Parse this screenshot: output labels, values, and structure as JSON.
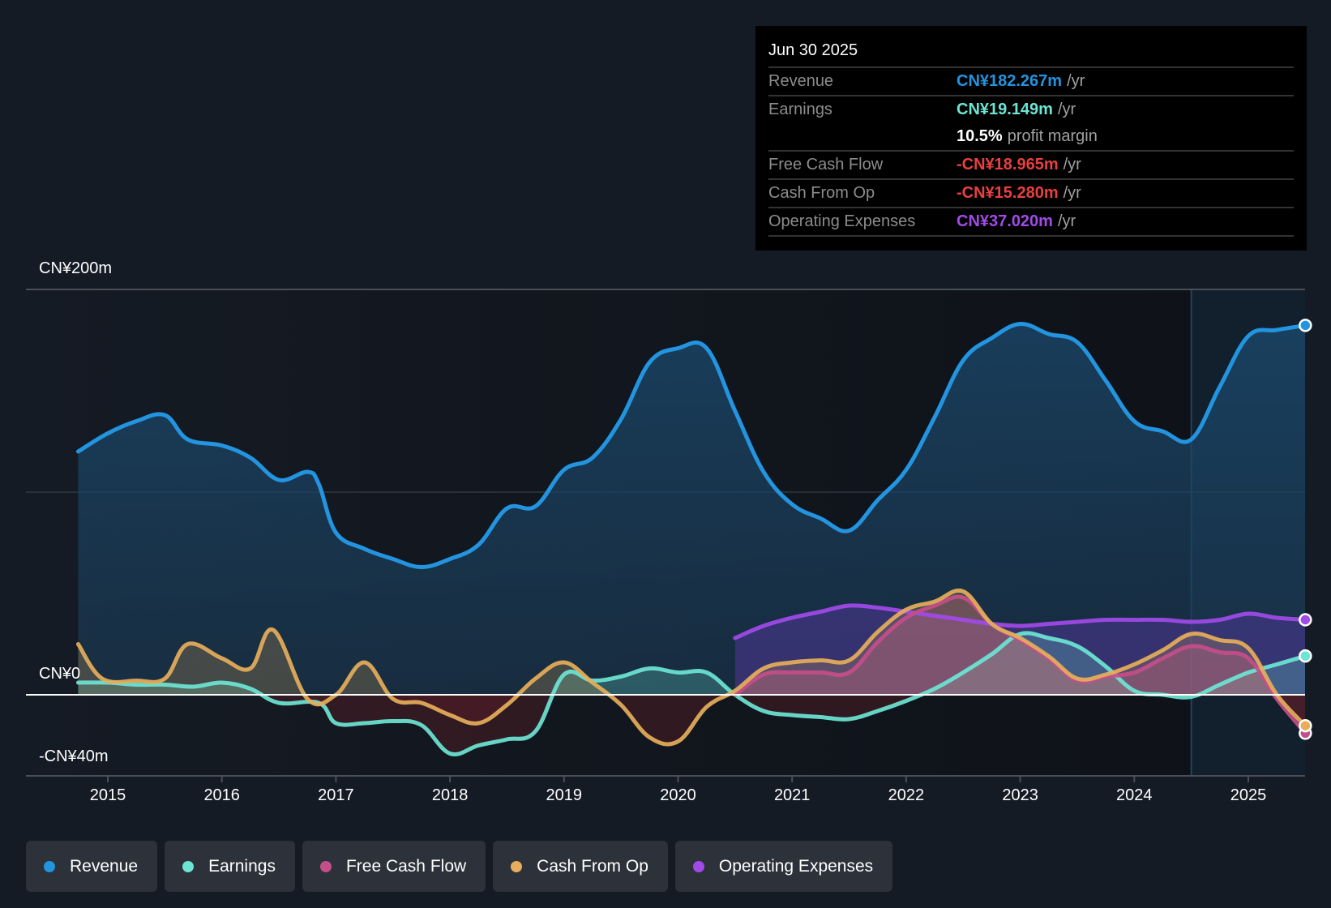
{
  "tooltip": {
    "date": "Jun 30 2025",
    "rows": [
      {
        "label": "Revenue",
        "value": "CN¥182.267m",
        "unit": "/yr",
        "color": "#2394df"
      },
      {
        "label": "Earnings",
        "value": "CN¥19.149m",
        "unit": "/yr",
        "color": "#6ce5d4"
      },
      {
        "label": "",
        "value": "10.5%",
        "unit": "profit margin",
        "color": "#ffffff"
      },
      {
        "label": "Free Cash Flow",
        "value": "-CN¥18.965m",
        "unit": "/yr",
        "color": "#e8403f"
      },
      {
        "label": "Cash From Op",
        "value": "-CN¥15.280m",
        "unit": "/yr",
        "color": "#e8403f"
      },
      {
        "label": "Operating Expenses",
        "value": "CN¥37.020m",
        "unit": "/yr",
        "color": "#a24ae8"
      }
    ]
  },
  "legend": [
    {
      "label": "Revenue",
      "color": "#2394df"
    },
    {
      "label": "Earnings",
      "color": "#6ce5d4"
    },
    {
      "label": "Free Cash Flow",
      "color": "#c44e8a"
    },
    {
      "label": "Cash From Op",
      "color": "#e6ae5a"
    },
    {
      "label": "Operating Expenses",
      "color": "#a24ae8"
    }
  ],
  "chart_data": {
    "type": "line",
    "title": "",
    "xlabel": "",
    "ylabel": "",
    "currency": "CN¥",
    "ylim": [
      -40,
      200
    ],
    "xlim": [
      2014.74,
      2025.5
    ],
    "y_tick_labels": [
      {
        "value": 200,
        "label": "CN¥200m"
      },
      {
        "value": 0,
        "label": "CN¥0"
      },
      {
        "value": -40,
        "label": "-CN¥40m"
      }
    ],
    "x_tick_labels": [
      "2015",
      "2016",
      "2017",
      "2018",
      "2019",
      "2020",
      "2021",
      "2022",
      "2023",
      "2024",
      "2025"
    ],
    "x_ticks": [
      2015,
      2016,
      2017,
      2018,
      2019,
      2020,
      2021,
      2022,
      2023,
      2024,
      2025
    ],
    "highlight_from": 2024.5,
    "grid": true,
    "legend_position": "bottom-left",
    "series": [
      {
        "name": "Revenue",
        "color": "#2394df",
        "x": [
          2014.74,
          2015.0,
          2015.25,
          2015.5,
          2015.7,
          2016.0,
          2016.25,
          2016.5,
          2016.75,
          2016.85,
          2017.0,
          2017.25,
          2017.5,
          2017.75,
          2018.0,
          2018.25,
          2018.5,
          2018.75,
          2019.0,
          2019.25,
          2019.5,
          2019.75,
          2020.0,
          2020.25,
          2020.5,
          2020.75,
          2021.0,
          2021.25,
          2021.5,
          2021.75,
          2022.0,
          2022.25,
          2022.5,
          2022.75,
          2023.0,
          2023.25,
          2023.5,
          2023.75,
          2024.0,
          2024.25,
          2024.5,
          2024.75,
          2025.0,
          2025.25,
          2025.5
        ],
        "values": [
          120,
          129,
          135,
          138,
          126,
          123,
          117,
          106,
          110,
          104,
          80,
          72,
          67,
          63,
          67,
          74,
          92,
          93,
          111,
          117,
          136,
          164,
          171,
          171,
          140,
          110,
          94,
          87,
          81,
          96,
          111,
          137,
          165,
          176,
          183,
          178,
          174,
          155,
          135,
          130,
          126,
          152,
          177,
          180,
          182.267
        ]
      },
      {
        "name": "Earnings",
        "color": "#6ce5d4",
        "x": [
          2014.74,
          2015.0,
          2015.25,
          2015.5,
          2015.75,
          2016.0,
          2016.25,
          2016.5,
          2016.85,
          2017.0,
          2017.25,
          2017.5,
          2017.75,
          2018.0,
          2018.25,
          2018.5,
          2018.75,
          2019.0,
          2019.25,
          2019.5,
          2019.75,
          2020.0,
          2020.25,
          2020.5,
          2020.75,
          2021.0,
          2021.25,
          2021.5,
          2021.75,
          2022.0,
          2022.25,
          2022.5,
          2022.75,
          2023.0,
          2023.25,
          2023.5,
          2023.75,
          2024.0,
          2024.25,
          2024.5,
          2024.75,
          2025.0,
          2025.25,
          2025.5
        ],
        "values": [
          6,
          6,
          5,
          5,
          4,
          6,
          3,
          -4,
          -4,
          -14,
          -14,
          -13,
          -15,
          -29,
          -25,
          -22,
          -18,
          10,
          7,
          9,
          13,
          11,
          11,
          0,
          -8,
          -10,
          -11,
          -12,
          -8,
          -3,
          3,
          11,
          20,
          30,
          28,
          24,
          14,
          2,
          0,
          -1,
          5,
          11,
          15,
          19.149
        ]
      },
      {
        "name": "Free Cash Flow",
        "color": "#c44e8a",
        "x": [
          2020.5,
          2020.75,
          2021.0,
          2021.25,
          2021.5,
          2021.75,
          2022.0,
          2022.25,
          2022.5,
          2022.75,
          2023.0,
          2023.25,
          2023.5,
          2023.75,
          2024.0,
          2024.25,
          2024.5,
          2024.75,
          2025.0,
          2025.25,
          2025.5
        ],
        "values": [
          0,
          10,
          11,
          11,
          11,
          26,
          38,
          44,
          48,
          35,
          27,
          18,
          7,
          9,
          11,
          18,
          24,
          21,
          18,
          -2,
          -18.965
        ]
      },
      {
        "name": "Cash From Op",
        "color": "#e6ae5a",
        "x": [
          2014.74,
          2014.95,
          2015.25,
          2015.5,
          2015.7,
          2016.0,
          2016.25,
          2016.45,
          2016.75,
          2017.0,
          2017.25,
          2017.5,
          2017.75,
          2018.0,
          2018.25,
          2018.5,
          2018.75,
          2019.0,
          2019.25,
          2019.5,
          2019.75,
          2020.0,
          2020.25,
          2020.5,
          2020.75,
          2021.0,
          2021.25,
          2021.5,
          2021.75,
          2022.0,
          2022.25,
          2022.5,
          2022.75,
          2023.0,
          2023.25,
          2023.5,
          2023.75,
          2024.0,
          2024.25,
          2024.5,
          2024.75,
          2025.0,
          2025.25,
          2025.5
        ],
        "values": [
          25,
          8,
          7,
          8,
          25,
          18,
          13,
          32,
          -2,
          0,
          16,
          -2,
          -4,
          -10,
          -14,
          -5,
          8,
          16,
          6,
          -5,
          -21,
          -23,
          -6,
          2,
          13,
          16,
          17,
          17,
          31,
          42,
          46,
          51,
          35,
          28,
          19,
          8,
          10,
          15,
          22,
          30,
          27,
          23,
          0,
          -15.28
        ]
      },
      {
        "name": "Operating Expenses",
        "color": "#a24ae8",
        "x": [
          2020.5,
          2020.75,
          2021.0,
          2021.25,
          2021.5,
          2021.75,
          2022.0,
          2022.25,
          2022.5,
          2022.75,
          2023.0,
          2023.25,
          2023.5,
          2023.75,
          2024.0,
          2024.25,
          2024.5,
          2024.75,
          2025.0,
          2025.25,
          2025.5
        ],
        "values": [
          28,
          34,
          38,
          41,
          44,
          43,
          41,
          39,
          37,
          35,
          34,
          35,
          36,
          37,
          37,
          37,
          36,
          37,
          40,
          38,
          37.02
        ]
      }
    ]
  }
}
